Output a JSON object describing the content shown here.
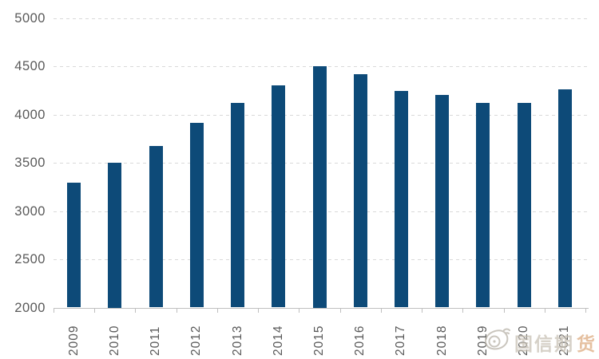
{
  "chart_data": {
    "type": "bar",
    "title": "",
    "xlabel": "",
    "ylabel": "",
    "categories": [
      "2009",
      "2010",
      "2011",
      "2012",
      "2013",
      "2014",
      "2015",
      "2016",
      "2017",
      "2018",
      "2019",
      "2020",
      "2021"
    ],
    "values": [
      3290,
      3500,
      3670,
      3910,
      4120,
      4300,
      4500,
      4420,
      4240,
      4200,
      4120,
      4120,
      4260
    ],
    "ylim": [
      2000,
      5000
    ],
    "yticks": [
      5000,
      4500,
      4000,
      3500,
      3000,
      2500,
      2000
    ],
    "grid": "horizontal-dashed",
    "legend": "none",
    "x_tick_label_rotation": 90
  },
  "colors": {
    "bar": "#0d4a78",
    "gridline": "#d9d9d9",
    "axis_line": "#bfbfbf",
    "tick_label": "#595959",
    "watermark_main": "#c7c0b4",
    "watermark_accent": "#dca87c"
  },
  "watermark": {
    "logo": "weibo-icon",
    "text_main": "国信期",
    "text_accent": "货"
  }
}
